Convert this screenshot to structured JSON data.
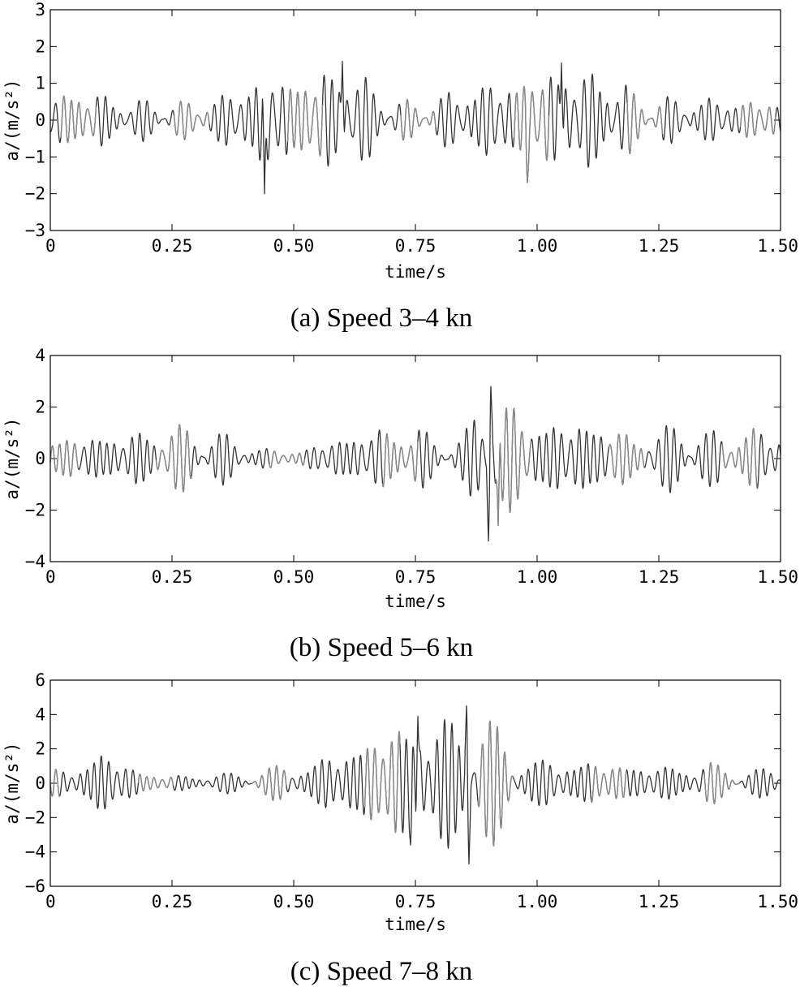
{
  "chart_data": [
    {
      "type": "line",
      "caption": "(a) Speed 3–4 kn",
      "xlabel": "time/s",
      "ylabel": "a/(m/s²)",
      "xlim": [
        0,
        1.5
      ],
      "ylim": [
        -3,
        3
      ],
      "xticks": [
        "0",
        "0.25",
        "0.50",
        "0.75",
        "1.00",
        "1.25",
        "1.50"
      ],
      "yticks": [
        "−3",
        "−2",
        "−1",
        "0",
        "1",
        "2",
        "3"
      ],
      "series_color": "#333333",
      "series_color_alt": "#8a8a8a",
      "envelope": {
        "t": [
          0,
          0.05,
          0.1,
          0.15,
          0.2,
          0.25,
          0.3,
          0.35,
          0.4,
          0.45,
          0.5,
          0.55,
          0.6,
          0.65,
          0.7,
          0.75,
          0.8,
          0.85,
          0.9,
          0.95,
          1.0,
          1.05,
          1.1,
          1.15,
          1.2,
          1.25,
          1.3,
          1.35,
          1.4,
          1.45,
          1.5
        ],
        "amp": [
          0.75,
          0.9,
          0.8,
          0.55,
          0.6,
          0.5,
          0.6,
          0.7,
          1.1,
          1.6,
          1.2,
          1.4,
          1.6,
          1.2,
          0.6,
          0.55,
          0.7,
          1.0,
          1.1,
          1.2,
          1.35,
          1.6,
          1.4,
          1.5,
          0.8,
          0.7,
          0.6,
          0.65,
          0.6,
          0.6,
          0.5
        ]
      },
      "peaks": [
        {
          "t": 0.44,
          "a": -2.0
        },
        {
          "t": 0.6,
          "a": 1.6
        },
        {
          "t": 1.05,
          "a": 1.55
        },
        {
          "t": 0.98,
          "a": -1.7
        }
      ]
    },
    {
      "type": "line",
      "caption": "(b) Speed 5–6 kn",
      "xlabel": "time/s",
      "ylabel": "a/(m/s²)",
      "xlim": [
        0,
        1.5
      ],
      "ylim": [
        -4,
        4
      ],
      "xticks": [
        "0",
        "0.25",
        "0.50",
        "0.75",
        "1.00",
        "1.25",
        "1.50"
      ],
      "yticks": [
        "−4",
        "−2",
        "0",
        "2",
        "4"
      ],
      "series_color": "#333333",
      "series_color_alt": "#8a8a8a",
      "envelope": {
        "t": [
          0,
          0.05,
          0.1,
          0.15,
          0.2,
          0.25,
          0.3,
          0.35,
          0.4,
          0.45,
          0.5,
          0.55,
          0.6,
          0.65,
          0.7,
          0.75,
          0.8,
          0.85,
          0.9,
          0.95,
          1.0,
          1.05,
          1.1,
          1.15,
          1.2,
          1.25,
          1.3,
          1.35,
          1.4,
          1.45,
          1.5
        ],
        "amp": [
          0.9,
          0.9,
          1.0,
          1.0,
          1.2,
          1.4,
          1.3,
          1.1,
          0.6,
          0.4,
          0.3,
          0.6,
          0.9,
          1.2,
          1.3,
          1.4,
          0.7,
          1.0,
          3.0,
          2.2,
          1.6,
          1.5,
          1.6,
          1.4,
          0.9,
          1.2,
          1.6,
          1.1,
          1.2,
          1.3,
          1.0
        ]
      },
      "peaks": [
        {
          "t": 0.905,
          "a": 2.8
        },
        {
          "t": 0.9,
          "a": -3.2
        },
        {
          "t": 0.92,
          "a": -2.6
        }
      ]
    },
    {
      "type": "line",
      "caption": "(c) Speed 7–8 kn",
      "xlabel": "time/s",
      "ylabel": "a/(m/s²)",
      "xlim": [
        0,
        1.5
      ],
      "ylim": [
        -6,
        6
      ],
      "xticks": [
        "0",
        "0.25",
        "0.50",
        "0.75",
        "1.00",
        "1.25",
        "1.50"
      ],
      "yticks": [
        "−6",
        "−4",
        "−2",
        "0",
        "2",
        "4",
        "6"
      ],
      "series_color": "#333333",
      "series_color_alt": "#8a8a8a",
      "envelope": {
        "t": [
          0,
          0.05,
          0.1,
          0.15,
          0.2,
          0.25,
          0.3,
          0.35,
          0.4,
          0.45,
          0.5,
          0.55,
          0.6,
          0.65,
          0.7,
          0.75,
          0.8,
          0.85,
          0.9,
          0.95,
          1.0,
          1.05,
          1.1,
          1.15,
          1.2,
          1.25,
          1.3,
          1.35,
          1.4,
          1.45,
          1.5
        ],
        "amp": [
          0.8,
          1.0,
          2.0,
          1.4,
          0.6,
          0.5,
          0.5,
          0.6,
          0.7,
          1.0,
          1.2,
          1.4,
          2.2,
          2.8,
          3.6,
          4.0,
          3.8,
          4.6,
          4.0,
          2.5,
          1.4,
          1.5,
          1.4,
          1.3,
          1.2,
          1.0,
          1.2,
          1.3,
          1.0,
          0.9,
          0.8
        ]
      },
      "peaks": [
        {
          "t": 0.755,
          "a": 3.9
        },
        {
          "t": 0.855,
          "a": 4.5
        },
        {
          "t": 0.86,
          "a": -4.7
        },
        {
          "t": 0.74,
          "a": -3.6
        }
      ]
    }
  ]
}
